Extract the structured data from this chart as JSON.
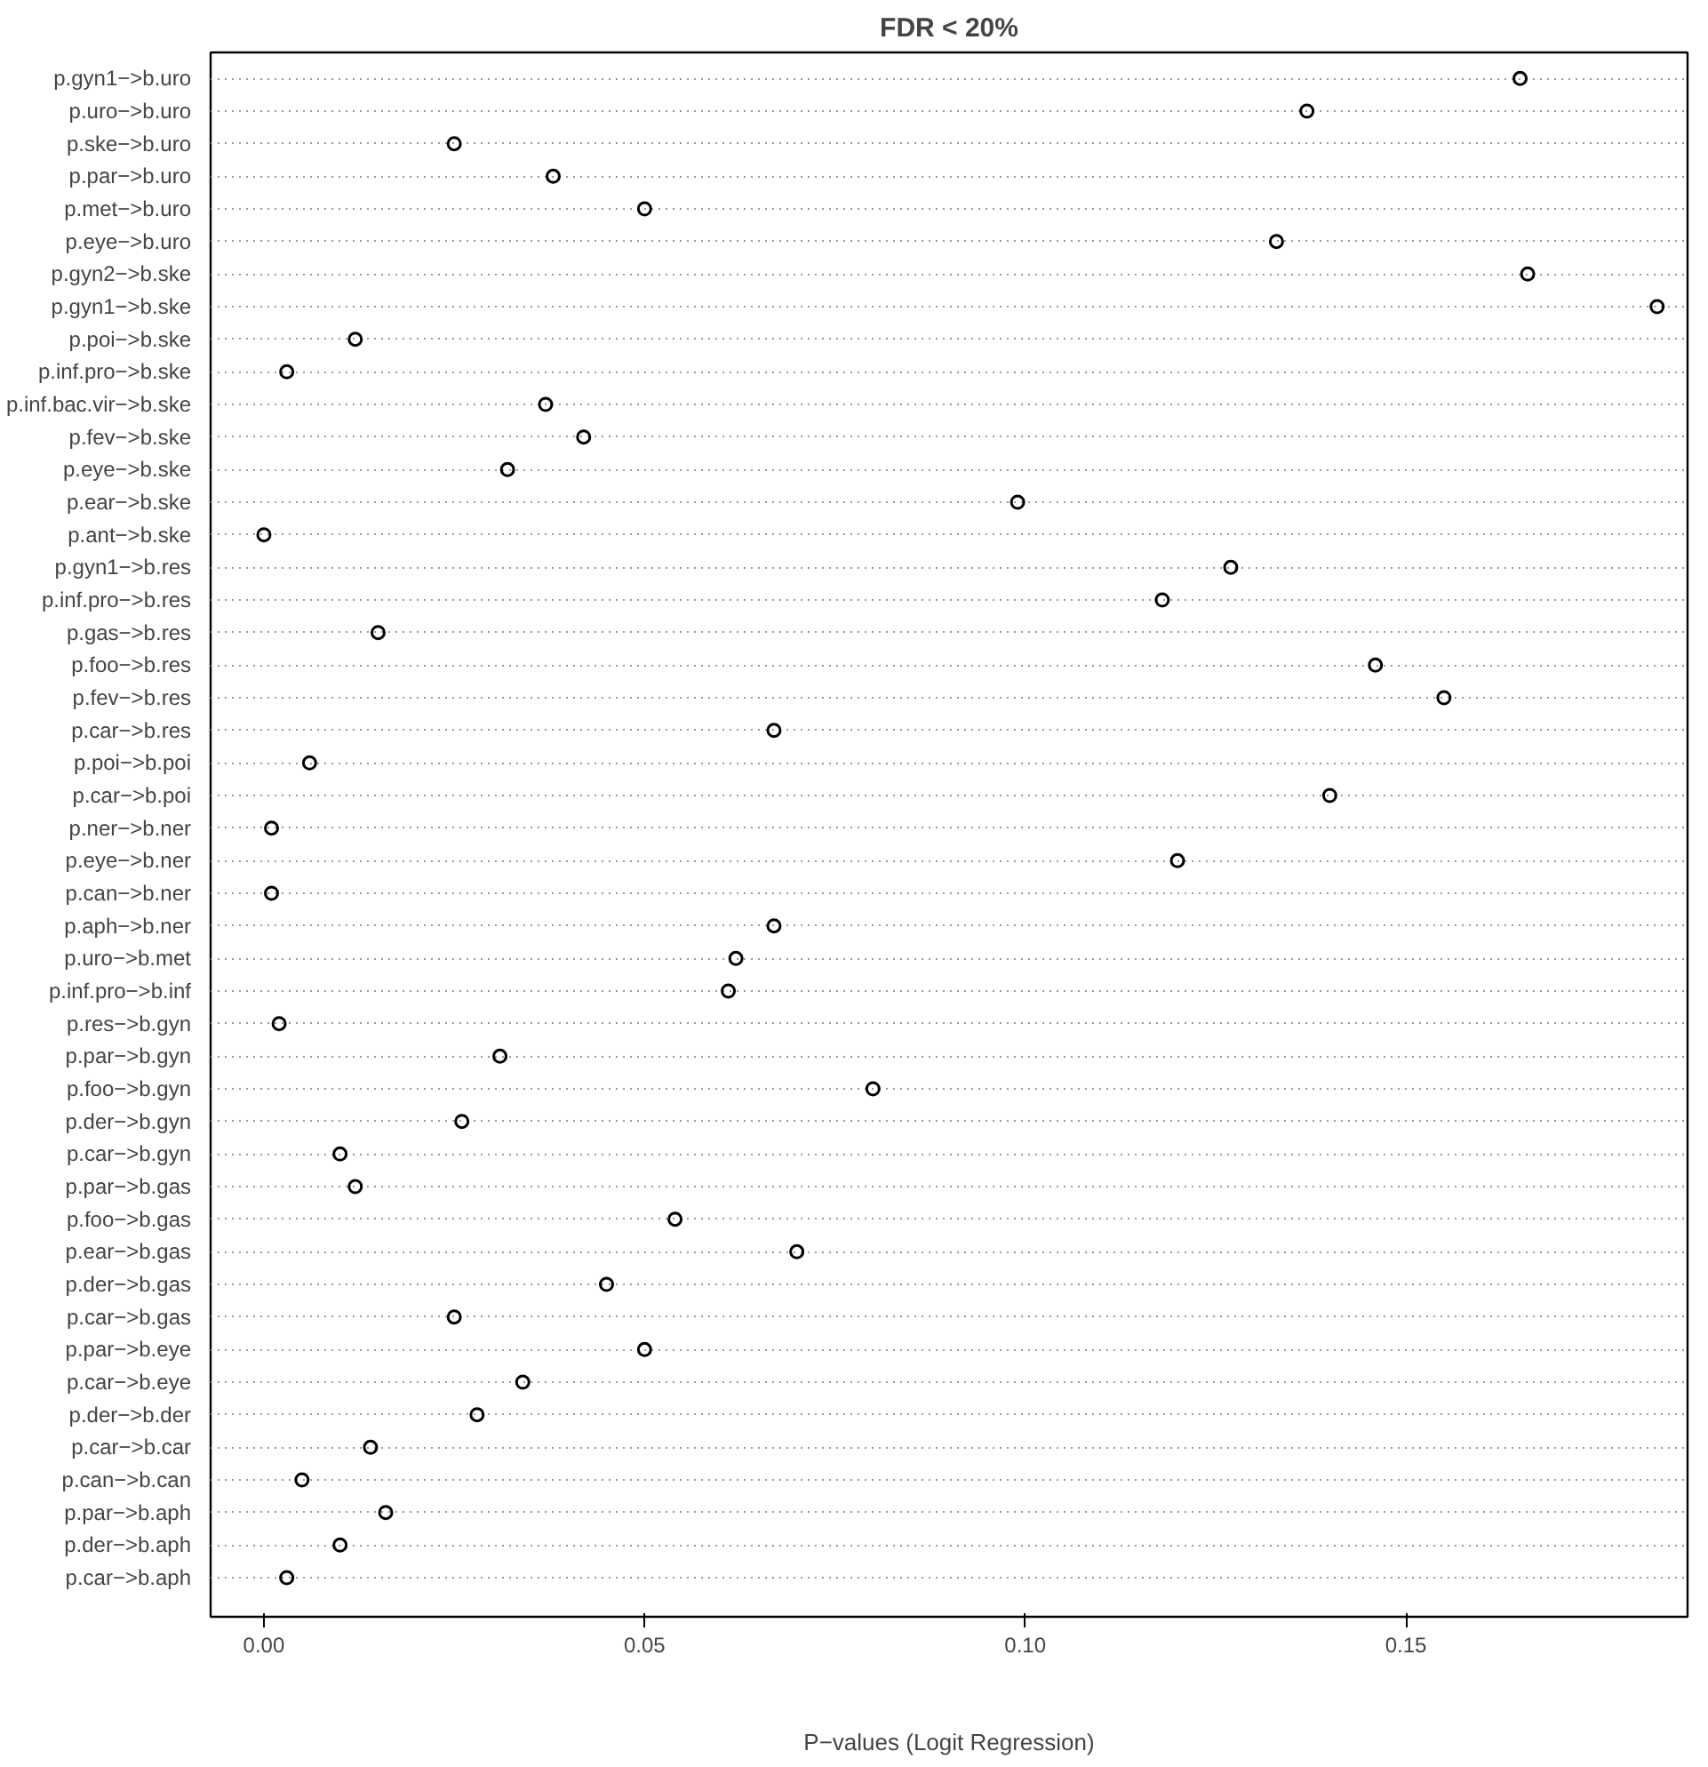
{
  "chart_data": {
    "type": "scatter",
    "title": "FDR < 20%",
    "xlabel": "P−values (Logit Regression)",
    "categories": [
      "p.gyn1−>b.uro",
      "p.uro−>b.uro",
      "p.ske−>b.uro",
      "p.par−>b.uro",
      "p.met−>b.uro",
      "p.eye−>b.uro",
      "p.gyn2−>b.ske",
      "p.gyn1−>b.ske",
      "p.poi−>b.ske",
      "p.inf.pro−>b.ske",
      "p.inf.bac.vir−>b.ske",
      "p.fev−>b.ske",
      "p.eye−>b.ske",
      "p.ear−>b.ske",
      "p.ant−>b.ske",
      "p.gyn1−>b.res",
      "p.inf.pro−>b.res",
      "p.gas−>b.res",
      "p.foo−>b.res",
      "p.fev−>b.res",
      "p.car−>b.res",
      "p.poi−>b.poi",
      "p.car−>b.poi",
      "p.ner−>b.ner",
      "p.eye−>b.ner",
      "p.can−>b.ner",
      "p.aph−>b.ner",
      "p.uro−>b.met",
      "p.inf.pro−>b.inf",
      "p.res−>b.gyn",
      "p.par−>b.gyn",
      "p.foo−>b.gyn",
      "p.der−>b.gyn",
      "p.car−>b.gyn",
      "p.par−>b.gas",
      "p.foo−>b.gas",
      "p.ear−>b.gas",
      "p.der−>b.gas",
      "p.car−>b.gas",
      "p.par−>b.eye",
      "p.car−>b.eye",
      "p.der−>b.der",
      "p.car−>b.car",
      "p.can−>b.can",
      "p.par−>b.aph",
      "p.der−>b.aph",
      "p.car−>b.aph"
    ],
    "series": [
      {
        "color": "#000000",
        "values": [
          0.165,
          0.137,
          0.025,
          0.038,
          0.05,
          0.133,
          0.166,
          0.183,
          0.012,
          0.003,
          0.037,
          0.042,
          0.032,
          0.099,
          0.0,
          0.127,
          0.118,
          0.015,
          0.146,
          0.155,
          0.067,
          0.006,
          0.14,
          0.001,
          0.12,
          0.001,
          0.067,
          0.062,
          0.061,
          0.002,
          0.031,
          0.08,
          0.026,
          0.01,
          0.012,
          0.054,
          0.07,
          0.045,
          0.025,
          0.05,
          0.034,
          0.028,
          0.014,
          0.005,
          0.016,
          0.01,
          0.003
        ]
      }
    ],
    "orientation": "horizontal",
    "xlim": [
      -0.007,
      0.187
    ],
    "xticks": [
      {
        "value": 0,
        "label": "0.00"
      },
      {
        "value": 0.05,
        "label": "0.05"
      },
      {
        "value": 0.1,
        "label": "0.10"
      },
      {
        "value": 0.15,
        "label": "0.15"
      }
    ],
    "grid": "y",
    "marker": "circle"
  }
}
